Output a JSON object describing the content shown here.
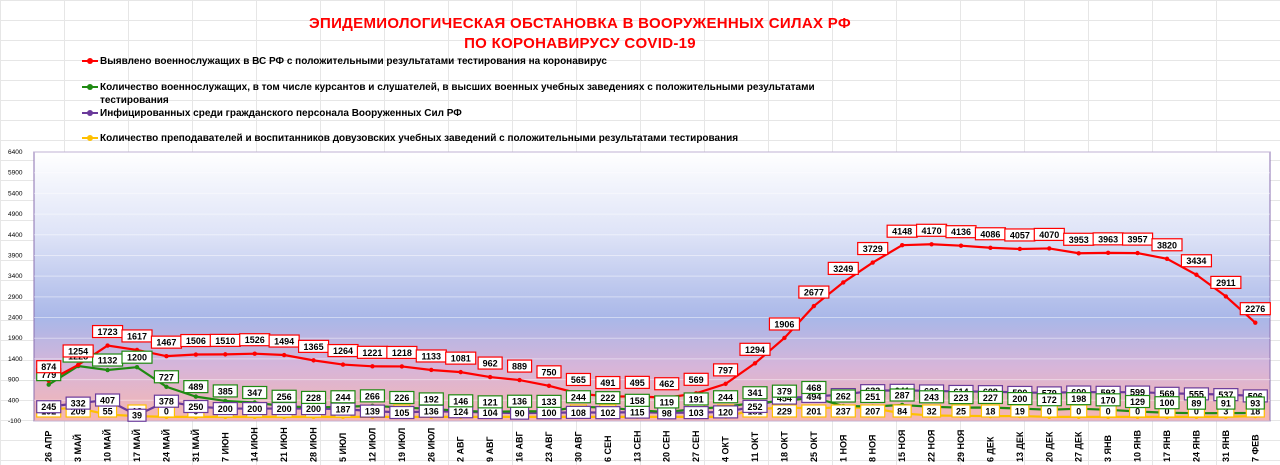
{
  "title_line1": "ЭПИДЕМИОЛОГИЧЕСКАЯ ОБСТАНОВКА В ВООРУЖЕННЫХ СИЛАХ РФ",
  "title_line2": "ПО КОРОНАВИРУСУ COVID-19",
  "colors": {
    "red": "#ff0000",
    "green": "#1f8a12",
    "purple": "#6a3a9a",
    "yellow": "#ffc000"
  },
  "chart_data": {
    "type": "line",
    "title": "ЭПИДЕМИОЛОГИЧЕСКАЯ ОБСТАНОВКА В ВООРУЖЕННЫХ СИЛАХ РФ ПО КОРОНАВИРУСУ COVID-19",
    "xlabel": "",
    "ylabel": "",
    "ylim": [
      -100,
      6400
    ],
    "yticks": [
      "-100",
      "400",
      "900",
      "1400",
      "1900",
      "2400",
      "2900",
      "3400",
      "3900",
      "4400",
      "4900",
      "5400",
      "5900",
      "6400"
    ],
    "categories": [
      "26 АПР",
      "3 МАЙ",
      "10 МАЙ",
      "17 МАЙ",
      "24 МАЙ",
      "31 МАЙ",
      "7 ИЮН",
      "14 ИЮН",
      "21 ИЮН",
      "28 ИЮН",
      "5 ИЮЛ",
      "12 ИЮЛ",
      "19 ИЮЛ",
      "26 ИЮЛ",
      "2 АВГ",
      "9 АВГ",
      "16 АВГ",
      "23 АВГ",
      "30 АВГ",
      "6 СЕН",
      "13 СЕН",
      "20 СЕН",
      "27 СЕН",
      "4 ОКТ",
      "11 ОКТ",
      "18 ОКТ",
      "25 ОКТ",
      "1 НОЯ",
      "8 НОЯ",
      "15 НОЯ",
      "22 НОЯ",
      "29 НОЯ",
      "6 ДЕК",
      "13 ДЕК",
      "20 ДЕК",
      "27 ДЕК",
      "3 ЯНВ",
      "10 ЯНВ",
      "17 ЯНВ",
      "24 ЯНВ",
      "31 ЯНВ",
      "7 ФЕВ"
    ],
    "grid": true,
    "legend_position": "top-left",
    "series": [
      {
        "name": "Выявлено военнослужащих в ВС РФ с положительными результатами тестирования на коронавирус",
        "color": "#ff0000",
        "values": [
          874,
          1254,
          1723,
          1617,
          1467,
          1506,
          1510,
          1526,
          1494,
          1365,
          1264,
          1221,
          1218,
          1133,
          1081,
          962,
          889,
          750,
          565,
          491,
          495,
          462,
          569,
          797,
          1294,
          1906,
          2677,
          3249,
          3729,
          4148,
          4170,
          4136,
          4086,
          4057,
          4070,
          3953,
          3963,
          3957,
          3820,
          3434,
          2911,
          2276
        ]
      },
      {
        "name": "Количество военнослужащих, в том числе курсантов и слушателей, в высших военных учебных заведениях с положительными результатами тестирования",
        "color": "#1f8a12",
        "values": [
          779,
          1228,
          1132,
          1200,
          727,
          489,
          385,
          347,
          256,
          228,
          244,
          266,
          226,
          192,
          146,
          121,
          136,
          133,
          244,
          222,
          158,
          119,
          191,
          244,
          341,
          379,
          468,
          262,
          251,
          287,
          243,
          223,
          227,
          200,
          172,
          198,
          170,
          129,
          100,
          89,
          91,
          93
        ]
      },
      {
        "name": "Инфицированных среди гражданского персонала Вооруженных Сил РФ",
        "color": "#6a3a9a",
        "values": [
          245,
          332,
          407,
          39,
          378,
          250,
          200,
          200,
          200,
          200,
          187,
          139,
          105,
          136,
          124,
          104,
          90,
          100,
          108,
          102,
          115,
          98,
          103,
          120,
          252,
          454,
          494,
          538,
          633,
          641,
          626,
          614,
          609,
          590,
          579,
          600,
          593,
          599,
          569,
          555,
          537,
          506
        ]
      },
      {
        "name": "Количество преподавателей и воспитанников довузовских учебных заведений с положительными результатами тестирования",
        "color": "#ffc000",
        "values": [
          192,
          209,
          55,
          18,
          0,
          0,
          0,
          0,
          0,
          0,
          0,
          0,
          0,
          0,
          0,
          0,
          0,
          0,
          0,
          0,
          0,
          0,
          0,
          0,
          181,
          229,
          201,
          237,
          207,
          84,
          32,
          25,
          18,
          19,
          0,
          0,
          0,
          0,
          0,
          0,
          3,
          18
        ]
      }
    ]
  }
}
